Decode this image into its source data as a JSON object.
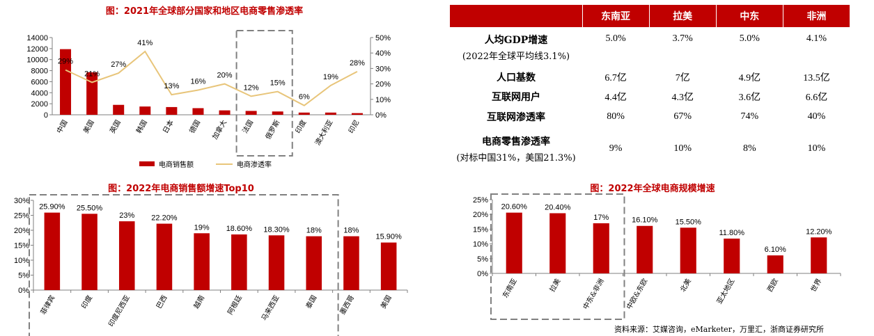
{
  "chart_data": [
    {
      "type": "bar+line",
      "title": "图：2021年全球部分国家和地区电商零售渗透率",
      "categories": [
        "中国",
        "美国",
        "英国",
        "韩国",
        "日本",
        "德国",
        "加拿大",
        "法国",
        "俄罗斯",
        "印度",
        "澳大利亚",
        "印尼"
      ],
      "series": [
        {
          "name": "电商销售额",
          "type": "bar",
          "axis": "left",
          "values": [
            11900,
            7700,
            1800,
            1500,
            1400,
            1200,
            800,
            700,
            600,
            400,
            400,
            300
          ]
        },
        {
          "name": "电商渗透率",
          "type": "line",
          "axis": "right",
          "values": [
            29,
            21,
            27,
            41,
            13,
            16,
            20,
            12,
            15,
            6,
            19,
            28
          ]
        }
      ],
      "data_labels": [
        "29%",
        "21%",
        "27%",
        "41%",
        "13%",
        "16%",
        "20%",
        "12%",
        "15%",
        "6%",
        "19%",
        "28%"
      ],
      "yticks_left": [
        "0",
        "2000",
        "4000",
        "6000",
        "8000",
        "10000",
        "12000",
        "14000"
      ],
      "yticks_right": [
        "0%",
        "10%",
        "20%",
        "30%",
        "40%",
        "50%"
      ],
      "ylim_left": [
        0,
        14000
      ],
      "ylim_right": [
        0,
        50
      ],
      "legend_position": "bottom",
      "highlight_box_categories": [
        "法国",
        "俄罗斯"
      ]
    },
    {
      "type": "bar",
      "title": "图：2022年电商销售额增速Top10",
      "categories": [
        "菲律宾",
        "印度",
        "印度尼西亚",
        "巴西",
        "越南",
        "阿根廷",
        "马来西亚",
        "泰国",
        "墨西哥",
        "美国"
      ],
      "values": [
        25.9,
        25.5,
        23,
        22.2,
        19,
        18.6,
        18.3,
        18,
        18,
        15.9
      ],
      "data_labels": [
        "25.90%",
        "25.50%",
        "23%",
        "22.20%",
        "19%",
        "18.60%",
        "18.30%",
        "18%",
        "18%",
        "15.90%"
      ],
      "yticks": [
        "0%",
        "5%",
        "10%",
        "15%",
        "20%",
        "25%",
        "30%"
      ],
      "ylim": [
        0,
        30
      ],
      "highlight_box_categories": [
        "菲律宾",
        "印度",
        "印度尼西亚",
        "巴西",
        "越南",
        "阿根廷",
        "马来西亚",
        "泰国"
      ]
    },
    {
      "type": "bar",
      "title": "图：2022年全球电商规模增速",
      "categories": [
        "东南亚",
        "拉美",
        "中东&非洲",
        "中欧&东欧",
        "北美",
        "亚太地区",
        "西欧",
        "世界"
      ],
      "values": [
        20.6,
        20.4,
        17,
        16.1,
        15.5,
        11.8,
        6.1,
        12.2
      ],
      "data_labels": [
        "20.60%",
        "20.40%",
        "17%",
        "16.10%",
        "15.50%",
        "11.80%",
        "6.10%",
        "12.20%"
      ],
      "yticks": [
        "0%",
        "5%",
        "10%",
        "15%",
        "20%",
        "25%"
      ],
      "ylim": [
        0,
        25
      ],
      "highlight_box_categories": [
        "东南亚",
        "拉美",
        "中东&非洲"
      ]
    }
  ],
  "colors": {
    "bar": "#c00000",
    "line": "#e8c57a",
    "header_bg": "#c00000",
    "title": "#c00000",
    "dashed_box": "#808080"
  },
  "table": {
    "headers": [
      "",
      "东南亚",
      "拉美",
      "中东",
      "非洲"
    ],
    "rows": [
      {
        "label": "人均GDP增速",
        "sublabel": "(2022年全球平均线3.1%)",
        "values": [
          "5.0%",
          "3.7%",
          "5.0%",
          "4.1%"
        ]
      },
      {
        "label": "人口基数",
        "values": [
          "6.7亿",
          "7亿",
          "4.9亿",
          "13.5亿"
        ]
      },
      {
        "label": "互联网用户",
        "values": [
          "4.4亿",
          "4.3亿",
          "3.6亿",
          "6.6亿"
        ]
      },
      {
        "label": "互联网渗透率",
        "values": [
          "80%",
          "67%",
          "74%",
          "40%"
        ]
      },
      {
        "label": "电商零售渗透率",
        "sublabel": "(对标中国31%，美国21.3%)",
        "values": [
          "9%",
          "10%",
          "8%",
          "10%"
        ]
      }
    ]
  },
  "source": "资料来源：艾媒咨询，eMarketer，万里汇，浙商证券研究所"
}
